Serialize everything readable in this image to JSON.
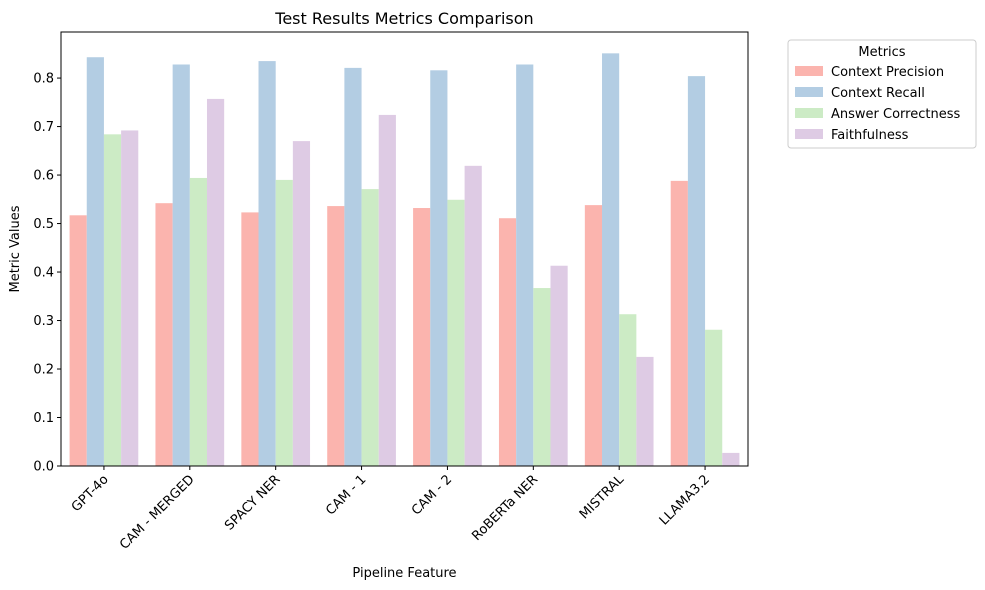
{
  "chart_data": {
    "type": "bar",
    "title": "Test Results Metrics Comparison",
    "xlabel": "Pipeline Feature",
    "ylabel": "Metric Values",
    "ylim": [
      0,
      0.895
    ],
    "yticks": [
      "0.0",
      "0.1",
      "0.2",
      "0.3",
      "0.4",
      "0.5",
      "0.6",
      "0.7",
      "0.8"
    ],
    "categories": [
      "GPT-4o",
      "CAM - MERGED",
      "SPACY NER",
      "CAM - 1",
      "CAM - 2",
      "RoBERTa NER",
      "MISTRAL",
      "LLAMA3.2"
    ],
    "series": [
      {
        "name": "Context Precision",
        "color": "#fbb4ae",
        "values": [
          0.517,
          0.542,
          0.523,
          0.536,
          0.532,
          0.511,
          0.538,
          0.588
        ]
      },
      {
        "name": "Context Recall",
        "color": "#b3cde3",
        "values": [
          0.843,
          0.828,
          0.835,
          0.821,
          0.816,
          0.828,
          0.851,
          0.804
        ]
      },
      {
        "name": "Answer Correctness",
        "color": "#ccebc5",
        "values": [
          0.684,
          0.594,
          0.59,
          0.571,
          0.549,
          0.367,
          0.313,
          0.281
        ]
      },
      {
        "name": "Faithfulness",
        "color": "#decbe4",
        "values": [
          0.692,
          0.757,
          0.67,
          0.724,
          0.619,
          0.413,
          0.225,
          0.027
        ]
      }
    ],
    "legend": {
      "title": "Metrics",
      "placement": "outside upper right"
    },
    "grid": false
  }
}
